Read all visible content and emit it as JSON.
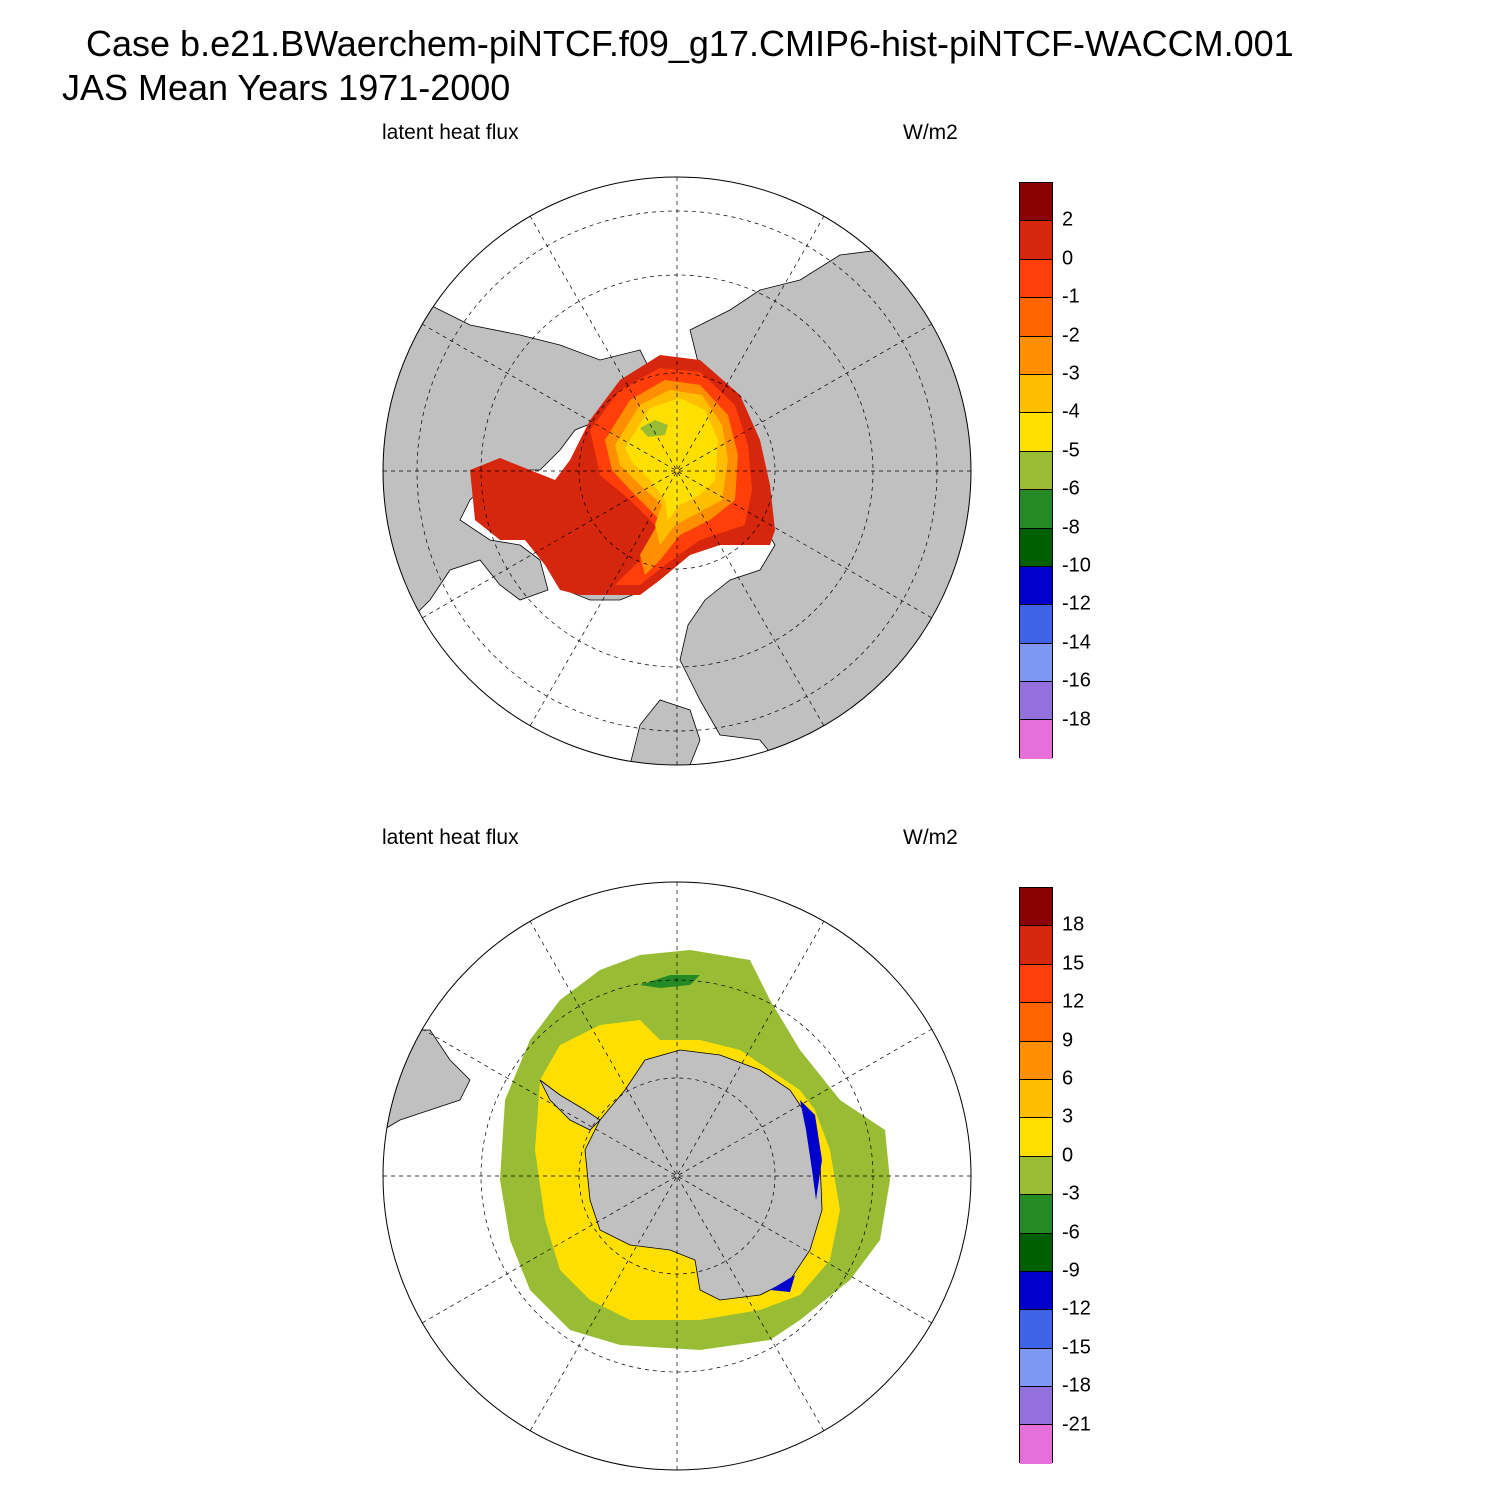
{
  "header": {
    "title_line1": "Case b.e21.BWaerchem-piNTCF.f09_g17.CMIP6-hist-piNTCF-WACCM.001",
    "title_line2": "JAS Mean   Years 1971-2000"
  },
  "panels": [
    {
      "left_label": "latent heat flux",
      "right_label": "W/m2",
      "colorbar": {
        "colors": [
          "#8b0000",
          "#d7260e",
          "#ff3e0a",
          "#ff6400",
          "#ff8f00",
          "#ffbe00",
          "#ffdf00",
          "#98bd34",
          "#248b24",
          "#005f00",
          "#0000cd",
          "#3d64e6",
          "#7d98f3",
          "#9370db",
          "#e66fdb"
        ],
        "labels": [
          "2",
          "0",
          "-1",
          "-2",
          "-3",
          "-4",
          "-5",
          "-6",
          "-8",
          "-10",
          "-12",
          "-14",
          "-16",
          "-18"
        ]
      }
    },
    {
      "left_label": "latent heat flux",
      "right_label": "W/m2",
      "colorbar": {
        "colors": [
          "#8b0000",
          "#d7260e",
          "#ff3e0a",
          "#ff6400",
          "#ff8f00",
          "#ffbe00",
          "#ffdf00",
          "#98bd34",
          "#248b24",
          "#005f00",
          "#0000cd",
          "#3d64e6",
          "#7d98f3",
          "#9370db",
          "#e66fdb"
        ],
        "labels": [
          "18",
          "15",
          "12",
          "9",
          "6",
          "3",
          "0",
          "-3",
          "-6",
          "-9",
          "-12",
          "-15",
          "-18",
          "-21"
        ]
      }
    }
  ],
  "colors": {
    "land": "#c0c0c0",
    "ocean": "#ffffff"
  }
}
